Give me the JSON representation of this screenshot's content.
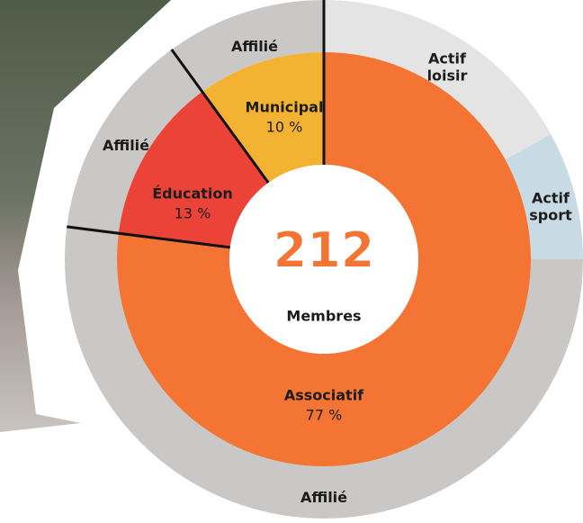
{
  "chart_data": {
    "type": "donut",
    "center_value": 212,
    "center_label": "Membres",
    "inner": {
      "categories": [
        "Associatif",
        "Éducation",
        "Municipal"
      ],
      "values": [
        77,
        13,
        10
      ],
      "value_labels": [
        "77 %",
        "13 %",
        "10 %"
      ],
      "colors": [
        "#f37433",
        "#ec4339",
        "#f4b233"
      ]
    },
    "outer": {
      "categories": [
        "Actif loisir",
        "Actif sport",
        "Affilié",
        "Affilié",
        "Affilié"
      ],
      "values": [
        17,
        8,
        52,
        13,
        10
      ],
      "colors": [
        "#e4e4e4",
        "#c8dbe5",
        "#c9c8c7",
        "#c9c8c7",
        "#c9c8c7"
      ]
    }
  }
}
